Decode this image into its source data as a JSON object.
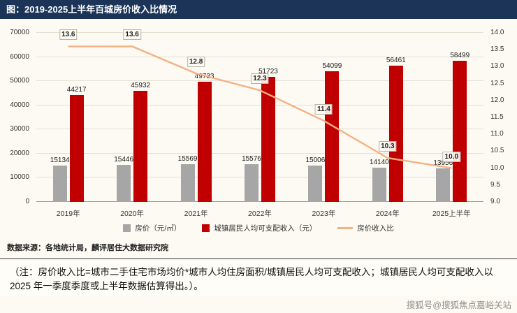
{
  "header": {
    "title": "图：2019-2025上半年百城房价收入比情况"
  },
  "chart_data": {
    "type": "combo",
    "title": "2019-2025上半年百城房价收入比情况",
    "categories": [
      "2019年",
      "2020年",
      "2021年",
      "2022年",
      "2023年",
      "2024年",
      "2025上半年"
    ],
    "series": [
      {
        "name": "房价（元/㎡）",
        "type": "bar",
        "color": "#a6a6a6",
        "values": [
          15134,
          15446,
          15569,
          15576,
          15006,
          14140,
          13956
        ]
      },
      {
        "name": "城镇居民人均可支配收入（元）",
        "type": "bar",
        "color": "#c00000",
        "values": [
          44217,
          45932,
          49733,
          51723,
          54099,
          56461,
          58499
        ]
      },
      {
        "name": "房价收入比",
        "type": "line",
        "color": "#f4b183",
        "values": [
          13.6,
          13.6,
          12.8,
          12.3,
          11.4,
          10.3,
          10.0
        ],
        "labels": [
          "13.6",
          "13.6",
          "12.8",
          "12.3",
          "11.4",
          "10.3",
          "10.0"
        ]
      }
    ],
    "left_axis": {
      "min": 0,
      "max": 70000,
      "step": 10000,
      "ticks": [
        "0",
        "10000",
        "20000",
        "30000",
        "40000",
        "50000",
        "60000",
        "70000"
      ]
    },
    "right_axis": {
      "min": 9.0,
      "max": 14.0,
      "step": 0.5,
      "ticks": [
        "9.0",
        "9.5",
        "10.0",
        "10.5",
        "11.0",
        "11.5",
        "12.0",
        "12.5",
        "13.0",
        "13.5",
        "14.0"
      ]
    },
    "grid": "horizontal",
    "legend_position": "bottom"
  },
  "source": "数据来源：各地统计局，麟评居住大数据研究院",
  "note": "（注：房价收入比=城市二手住宅市场均价*城市人均住房面积/城镇居民人均可支配收入；城镇居民人均可支配收入以 2025 年一季度季度或上半年数据估算得出。）。",
  "watermark": "搜狐号@搜狐焦点嘉峪关站"
}
